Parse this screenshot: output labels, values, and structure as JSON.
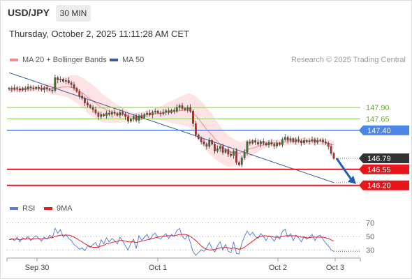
{
  "header": {
    "symbol": "USD/JPY",
    "timeframe": "30 MIN",
    "datetime": "Thursday, October 2, 2025 11:11:28 AM CET"
  },
  "legend": {
    "ma20": {
      "label": "MA 20 + Bollinger Bands",
      "color": "#f28b8b"
    },
    "ma50": {
      "label": "MA 50",
      "color": "#3a5a9c"
    },
    "credit": "Research © 2025 Trading Central"
  },
  "rsi_legend": {
    "rsi": {
      "label": "RSI",
      "color": "#5b7fd6"
    },
    "ma9": {
      "label": "9MA",
      "color": "#e02020"
    }
  },
  "colors": {
    "support": "#e8151b",
    "pivot": "#4b87e6",
    "resistance": "#8fc85a",
    "last_price_bg": "#333333",
    "arrow": "#1f5fb5",
    "band_fill": "#fde3e3",
    "candle_up": "#2e7d32",
    "candle_down": "#c62828"
  },
  "chart_data": [
    {
      "type": "candlestick",
      "price_range": [
        145.8,
        148.8
      ],
      "levels": [
        {
          "label": "147.90",
          "value": 147.9,
          "kind": "resistance"
        },
        {
          "label": "147.65",
          "value": 147.65,
          "kind": "resistance"
        },
        {
          "label": "147.40",
          "value": 147.4,
          "kind": "pivot"
        },
        {
          "label": "146.55",
          "value": 146.55,
          "kind": "support"
        },
        {
          "label": "146.20",
          "value": 146.2,
          "kind": "support"
        }
      ],
      "last_price": {
        "label": "146.79",
        "value": 146.79
      },
      "x_ticks": [
        "Sep 30",
        "Oct 1",
        "Oct 2",
        "Oct 3"
      ],
      "forecast_arrow": {
        "from": 146.79,
        "to": 146.2
      },
      "close": [
        148.32,
        148.3,
        148.33,
        148.31,
        148.28,
        148.32,
        148.3,
        148.35,
        148.33,
        148.31,
        148.34,
        148.32,
        148.29,
        148.33,
        148.3,
        148.28,
        148.27,
        148.55,
        148.5,
        148.52,
        148.47,
        148.49,
        148.44,
        148.4,
        148.32,
        148.25,
        148.15,
        148.1,
        148.0,
        147.95,
        147.9,
        147.85,
        147.78,
        147.7,
        147.75,
        147.72,
        147.78,
        147.75,
        147.8,
        147.77,
        147.73,
        147.79,
        147.76,
        147.7,
        147.6,
        147.65,
        147.7,
        147.62,
        147.72,
        147.68,
        147.75,
        147.78,
        147.74,
        147.8,
        147.82,
        147.78,
        147.76,
        147.8,
        147.83,
        147.79,
        147.84,
        147.82,
        147.9,
        147.94,
        147.88,
        147.85,
        147.9,
        147.82,
        147.55,
        147.3,
        147.22,
        147.15,
        147.1,
        147.05,
        147.18,
        147.1,
        146.95,
        147.0,
        147.05,
        146.92,
        146.98,
        146.88,
        146.85,
        146.95,
        146.7,
        146.65,
        146.8,
        146.92,
        147.15,
        147.12,
        147.18,
        147.14,
        147.1,
        147.16,
        147.12,
        147.08,
        147.14,
        147.1,
        147.06,
        147.12,
        147.09,
        147.2,
        147.25,
        147.18,
        147.22,
        147.15,
        147.2,
        147.17,
        147.13,
        147.18,
        147.15,
        147.17,
        147.2,
        147.14,
        147.18,
        147.19,
        147.15,
        147.12,
        147.05,
        146.9,
        146.79
      ],
      "ma20": [
        148.28,
        148.28,
        148.29,
        148.29,
        148.29,
        148.29,
        148.29,
        148.3,
        148.3,
        148.31,
        148.31,
        148.31,
        148.32,
        148.33,
        148.33,
        148.32,
        148.3,
        148.32,
        148.33,
        148.34,
        148.35,
        148.35,
        148.35,
        148.34,
        148.32,
        148.3,
        148.26,
        148.22,
        148.18,
        148.12,
        148.08,
        148.04,
        148.0,
        147.95,
        147.9,
        147.88,
        147.85,
        147.82,
        147.8,
        147.78,
        147.76,
        147.75,
        147.74,
        147.73,
        147.72,
        147.71,
        147.7,
        147.7,
        147.71,
        147.72,
        147.73,
        147.74,
        147.75,
        147.75,
        147.76,
        147.77,
        147.77,
        147.78,
        147.79,
        147.8,
        147.8,
        147.81,
        147.82,
        147.83,
        147.84,
        147.84,
        147.84,
        147.82,
        147.78,
        147.72,
        147.65,
        147.58,
        147.5,
        147.42,
        147.36,
        147.3,
        147.22,
        147.16,
        147.1,
        147.04,
        146.99,
        146.95,
        146.92,
        146.92,
        146.9,
        146.9,
        146.92,
        146.95,
        146.98,
        147.0,
        147.01,
        147.03,
        147.05,
        147.07,
        147.08,
        147.1,
        147.11,
        147.12,
        147.12,
        147.13,
        147.13,
        147.14,
        147.15,
        147.15,
        147.16,
        147.16,
        147.16,
        147.16,
        147.16,
        147.17,
        147.17,
        147.17,
        147.17,
        147.17,
        147.16,
        147.16,
        147.15,
        147.14,
        147.12,
        147.1,
        147.08
      ],
      "ma50": [
        148.66,
        148.64,
        148.62,
        148.6,
        148.58,
        148.56,
        148.54,
        148.52,
        148.5,
        148.48,
        148.46,
        148.44,
        148.42,
        148.4,
        148.38,
        148.36,
        148.34,
        148.32,
        148.3,
        148.28,
        148.26,
        148.24,
        148.22,
        148.2,
        148.18,
        148.16,
        148.14,
        148.12,
        148.1,
        148.08,
        148.06,
        148.04,
        148.02,
        148.0,
        147.98,
        147.96,
        147.94,
        147.92,
        147.9,
        147.88,
        147.86,
        147.84,
        147.82,
        147.8,
        147.78,
        147.76,
        147.74,
        147.72,
        147.7,
        147.68,
        147.66,
        147.64,
        147.62,
        147.6,
        147.58,
        147.56,
        147.54,
        147.52,
        147.5,
        147.48,
        147.46,
        147.44,
        147.42,
        147.4,
        147.38,
        147.36,
        147.34,
        147.32,
        147.3,
        147.28,
        147.26,
        147.24,
        147.22,
        147.2,
        147.18,
        147.16,
        147.14,
        147.12,
        147.1,
        147.08,
        147.06,
        147.04,
        147.02,
        147.0,
        146.98,
        146.96,
        146.94,
        146.92,
        146.9,
        146.88,
        146.86,
        146.84,
        146.82,
        146.8,
        146.78,
        146.76,
        146.74,
        146.72,
        146.7,
        146.68,
        146.66,
        146.64,
        146.62,
        146.6,
        146.58,
        146.56,
        146.54,
        146.52,
        146.5,
        146.48,
        146.46,
        146.44,
        146.42,
        146.4,
        146.38,
        146.36,
        146.34,
        146.32,
        146.3,
        146.28,
        146.26
      ],
      "band_width": [
        0.06,
        0.06,
        0.06,
        0.06,
        0.06,
        0.06,
        0.06,
        0.06,
        0.06,
        0.06,
        0.07,
        0.07,
        0.08,
        0.09,
        0.1,
        0.11,
        0.12,
        0.14,
        0.16,
        0.18,
        0.2,
        0.22,
        0.24,
        0.26,
        0.28,
        0.3,
        0.32,
        0.33,
        0.34,
        0.35,
        0.35,
        0.35,
        0.34,
        0.33,
        0.32,
        0.3,
        0.28,
        0.26,
        0.24,
        0.22,
        0.2,
        0.18,
        0.16,
        0.14,
        0.12,
        0.1,
        0.09,
        0.08,
        0.08,
        0.08,
        0.08,
        0.09,
        0.1,
        0.11,
        0.12,
        0.14,
        0.16,
        0.18,
        0.2,
        0.22,
        0.24,
        0.26,
        0.28,
        0.3,
        0.32,
        0.34,
        0.36,
        0.38,
        0.4,
        0.42,
        0.44,
        0.46,
        0.48,
        0.48,
        0.48,
        0.46,
        0.44,
        0.42,
        0.4,
        0.38,
        0.36,
        0.34,
        0.32,
        0.3,
        0.28,
        0.26,
        0.24,
        0.22,
        0.2,
        0.18,
        0.16,
        0.14,
        0.12,
        0.1,
        0.09,
        0.08,
        0.08,
        0.08,
        0.08,
        0.08,
        0.08,
        0.08,
        0.08,
        0.08,
        0.08,
        0.08,
        0.08,
        0.08,
        0.08,
        0.08,
        0.08,
        0.08,
        0.08,
        0.08,
        0.08,
        0.08,
        0.08,
        0.08,
        0.08,
        0.08,
        0.08
      ]
    },
    {
      "type": "line",
      "title": "RSI",
      "ylim": [
        20,
        80
      ],
      "y_ticks": [
        70,
        50,
        30
      ],
      "rsi": [
        45,
        47,
        44,
        49,
        42,
        48,
        46,
        50,
        44,
        48,
        51,
        47,
        43,
        49,
        46,
        52,
        48,
        62,
        55,
        60,
        49,
        53,
        47,
        44,
        38,
        35,
        31,
        33,
        29,
        36,
        34,
        38,
        41,
        33,
        45,
        39,
        48,
        42,
        47,
        44,
        39,
        49,
        43,
        36,
        30,
        40,
        46,
        32,
        51,
        44,
        49,
        53,
        45,
        52,
        55,
        48,
        46,
        51,
        54,
        47,
        53,
        50,
        59,
        62,
        50,
        46,
        52,
        41,
        27,
        22,
        26,
        30,
        28,
        33,
        41,
        32,
        27,
        36,
        42,
        30,
        38,
        28,
        26,
        42,
        25,
        24,
        40,
        50,
        58,
        52,
        56,
        50,
        47,
        54,
        50,
        44,
        51,
        48,
        43,
        51,
        46,
        57,
        61,
        49,
        54,
        44,
        52,
        48,
        42,
        50,
        46,
        49,
        53,
        44,
        50,
        52,
        46,
        40,
        36,
        30,
        28
      ],
      "ma9": [
        45,
        46,
        46,
        46,
        45,
        46,
        46,
        47,
        46,
        46,
        47,
        47,
        46,
        47,
        47,
        48,
        48,
        50,
        51,
        52,
        52,
        52,
        52,
        51,
        49,
        47,
        44,
        42,
        39,
        37,
        35,
        34,
        34,
        34,
        36,
        37,
        39,
        40,
        41,
        42,
        43,
        44,
        44,
        43,
        42,
        42,
        42,
        41,
        42,
        43,
        44,
        45,
        46,
        47,
        48,
        49,
        50,
        50,
        51,
        51,
        51,
        51,
        52,
        53,
        53,
        53,
        52,
        50,
        47,
        44,
        40,
        36,
        33,
        31,
        30,
        30,
        31,
        32,
        33,
        33,
        34,
        33,
        32,
        33,
        32,
        31,
        32,
        34,
        37,
        40,
        43,
        46,
        49,
        50,
        51,
        51,
        50,
        50,
        49,
        49,
        49,
        50,
        51,
        51,
        51,
        51,
        51,
        50,
        49,
        49,
        48,
        48,
        49,
        49,
        49,
        49,
        49,
        48,
        47,
        45,
        43
      ]
    }
  ]
}
